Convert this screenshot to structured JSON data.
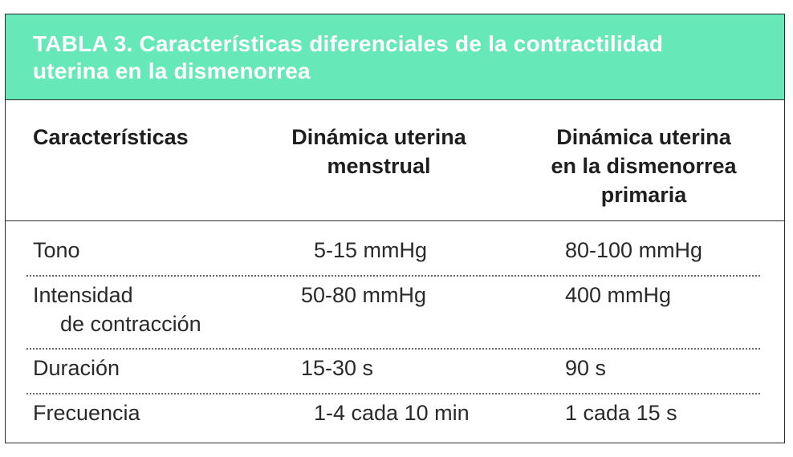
{
  "title": "TABLA 3. Características diferenciales de la contractilidad uterina en la dismenorrea",
  "headers": [
    "Características",
    "Dinámica uterina\nmenstrual",
    "Dinámica uterina\nen la dismenorrea\nprimaria"
  ],
  "rows": [
    {
      "label": "Tono",
      "label2": "",
      "menstrual": "5-15 mmHg",
      "dismenorrea": "80-100 mmHg"
    },
    {
      "label": "Intensidad",
      "label2": "de contracción",
      "menstrual": "50-80 mmHg",
      "dismenorrea": "400 mmHg"
    },
    {
      "label": "Duración",
      "label2": "",
      "menstrual": "15-30 s",
      "dismenorrea": "90 s"
    },
    {
      "label": "Frecuencia",
      "label2": "",
      "menstrual": "1-4 cada 10 min",
      "dismenorrea": "1 cada 15 s"
    }
  ],
  "colors": {
    "title_band": "#66e8b8",
    "title_text": "#ffffff",
    "border": "#2a2a2a"
  }
}
